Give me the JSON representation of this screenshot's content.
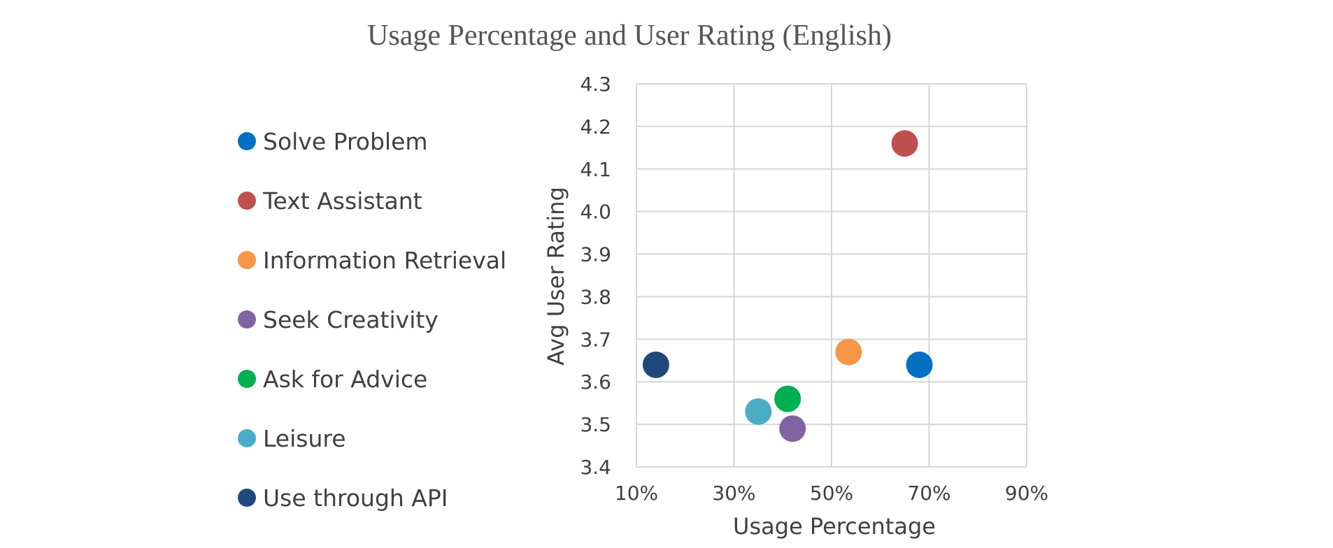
{
  "chart_data": {
    "type": "scatter",
    "title": "Usage Percentage and User Rating (English)",
    "xlabel": "Usage Percentage",
    "ylabel": "Avg User Rating",
    "xlim": [
      0.1,
      0.9
    ],
    "ylim": [
      3.4,
      4.3
    ],
    "x_ticks": [
      0.1,
      0.3,
      0.5,
      0.7,
      0.9
    ],
    "x_tick_labels": [
      "10%",
      "30%",
      "50%",
      "70%",
      "90%"
    ],
    "y_ticks": [
      3.4,
      3.5,
      3.6,
      3.7,
      3.8,
      3.9,
      4.0,
      4.1,
      4.2,
      4.3
    ],
    "y_tick_labels": [
      "3.4",
      "3.5",
      "3.6",
      "3.7",
      "3.8",
      "3.9",
      "4.0",
      "4.1",
      "4.2",
      "4.3"
    ],
    "grid": true,
    "legend_position": "left",
    "series": [
      {
        "name": "Solve Problem",
        "color": "#0070C0",
        "x": 0.68,
        "y": 3.64
      },
      {
        "name": "Text Assistant",
        "color": "#C0504D",
        "x": 0.65,
        "y": 4.16
      },
      {
        "name": "Information Retrieval",
        "color": "#F79646",
        "x": 0.535,
        "y": 3.67
      },
      {
        "name": "Seek Creativity",
        "color": "#8064A2",
        "x": 0.42,
        "y": 3.49
      },
      {
        "name": "Ask for Advice",
        "color": "#00B050",
        "x": 0.41,
        "y": 3.56
      },
      {
        "name": "Leisure",
        "color": "#4BACC6",
        "x": 0.35,
        "y": 3.53
      },
      {
        "name": "Use through API",
        "color": "#1F497D",
        "x": 0.14,
        "y": 3.64
      }
    ]
  }
}
